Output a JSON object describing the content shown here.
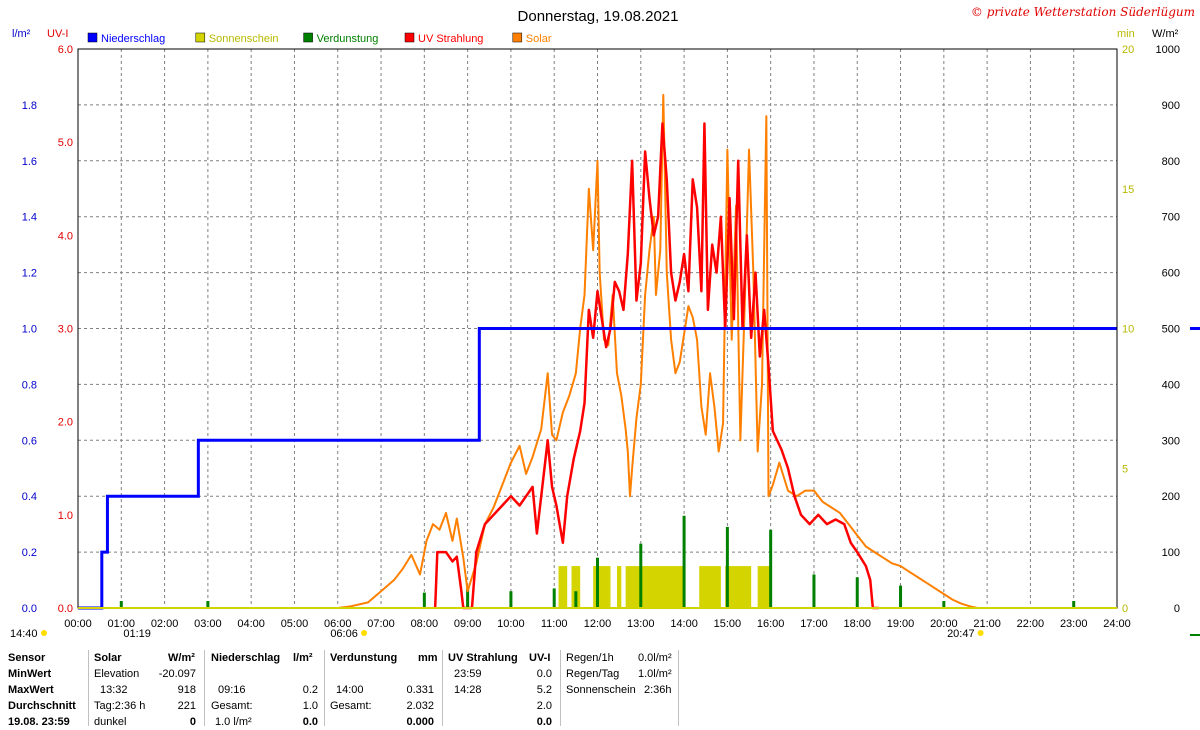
{
  "chart_data": {
    "type": "line",
    "title": "Donnerstag, 19.08.2021",
    "copyright": "© private Wetterstation Süderlügum",
    "x_ticks": [
      "00:00",
      "01:00",
      "02:00",
      "03:00",
      "04:00",
      "05:00",
      "06:00",
      "07:00",
      "08:00",
      "09:00",
      "10:00",
      "11:00",
      "12:00",
      "13:00",
      "14:00",
      "15:00",
      "16:00",
      "17:00",
      "18:00",
      "19:00",
      "20:00",
      "21:00",
      "22:00",
      "23:00",
      "24:00"
    ],
    "xlim_hours": [
      0,
      24
    ],
    "axes": {
      "precip": {
        "label": "l/m²",
        "ylim": [
          0,
          2.0
        ],
        "ticks": [
          "0.0",
          "0.2",
          "0.4",
          "0.6",
          "0.8",
          "1.0",
          "1.2",
          "1.4",
          "1.6",
          "1.8"
        ],
        "color": "#0000cc"
      },
      "uv": {
        "label": "UV-I",
        "ylim": [
          0,
          6.0
        ],
        "ticks": [
          "0.0",
          "1.0",
          "2.0",
          "3.0",
          "4.0",
          "5.0",
          "6.0"
        ],
        "color": "#e00000"
      },
      "sunshine": {
        "label": "min",
        "ylim": [
          0,
          20
        ],
        "ticks": [
          "0",
          "5",
          "10",
          "15",
          "20"
        ],
        "color": "#b8b800"
      },
      "solar": {
        "label": "W/m²",
        "ylim": [
          0,
          1000
        ],
        "ticks": [
          "0",
          "100",
          "200",
          "300",
          "400",
          "500",
          "600",
          "700",
          "800",
          "900",
          "1000"
        ],
        "color": "#000000"
      }
    },
    "legend": [
      {
        "name": "Niederschlag",
        "color": "#0000ff"
      },
      {
        "name": "Sonnenschein",
        "color": "#d4d400"
      },
      {
        "name": "Verdunstung",
        "color": "#008000"
      },
      {
        "name": "UV Strahlung",
        "color": "#ff0000"
      },
      {
        "name": "Solar",
        "color": "#ff8000"
      }
    ],
    "series": [
      {
        "name": "Niederschlag",
        "axis": "precip",
        "color": "#0000ff",
        "step": true,
        "points": [
          [
            0,
            0
          ],
          [
            0.55,
            0
          ],
          [
            0.55,
            0.2
          ],
          [
            0.68,
            0.2
          ],
          [
            0.68,
            0.4
          ],
          [
            2.78,
            0.4
          ],
          [
            2.78,
            0.6
          ],
          [
            9.27,
            0.6
          ],
          [
            9.27,
            1.0
          ],
          [
            24,
            1.0
          ]
        ]
      },
      {
        "name": "Solar",
        "axis": "solar",
        "color": "#ff8000",
        "points": [
          [
            6.0,
            0
          ],
          [
            6.3,
            3
          ],
          [
            6.7,
            10
          ],
          [
            7.0,
            30
          ],
          [
            7.3,
            50
          ],
          [
            7.5,
            70
          ],
          [
            7.7,
            95
          ],
          [
            7.9,
            60
          ],
          [
            8.05,
            120
          ],
          [
            8.2,
            150
          ],
          [
            8.35,
            140
          ],
          [
            8.5,
            170
          ],
          [
            8.65,
            120
          ],
          [
            8.75,
            160
          ],
          [
            8.9,
            90
          ],
          [
            9.0,
            30
          ],
          [
            9.2,
            80
          ],
          [
            9.4,
            150
          ],
          [
            9.6,
            180
          ],
          [
            9.8,
            220
          ],
          [
            9.9,
            240
          ],
          [
            10.0,
            260
          ],
          [
            10.2,
            290
          ],
          [
            10.35,
            240
          ],
          [
            10.5,
            270
          ],
          [
            10.7,
            320
          ],
          [
            10.85,
            420
          ],
          [
            10.95,
            310
          ],
          [
            11.05,
            300
          ],
          [
            11.2,
            350
          ],
          [
            11.35,
            380
          ],
          [
            11.5,
            420
          ],
          [
            11.6,
            500
          ],
          [
            11.7,
            560
          ],
          [
            11.8,
            750
          ],
          [
            11.9,
            640
          ],
          [
            12.0,
            800
          ],
          [
            12.05,
            600
          ],
          [
            12.15,
            480
          ],
          [
            12.25,
            470
          ],
          [
            12.35,
            560
          ],
          [
            12.45,
            420
          ],
          [
            12.55,
            380
          ],
          [
            12.65,
            320
          ],
          [
            12.7,
            280
          ],
          [
            12.75,
            200
          ],
          [
            12.8,
            250
          ],
          [
            12.9,
            340
          ],
          [
            13.0,
            400
          ],
          [
            13.1,
            560
          ],
          [
            13.2,
            640
          ],
          [
            13.3,
            700
          ],
          [
            13.35,
            560
          ],
          [
            13.45,
            640
          ],
          [
            13.52,
            918
          ],
          [
            13.6,
            600
          ],
          [
            13.7,
            480
          ],
          [
            13.8,
            420
          ],
          [
            13.9,
            440
          ],
          [
            14.0,
            490
          ],
          [
            14.1,
            540
          ],
          [
            14.2,
            520
          ],
          [
            14.3,
            480
          ],
          [
            14.4,
            360
          ],
          [
            14.5,
            310
          ],
          [
            14.6,
            420
          ],
          [
            14.7,
            360
          ],
          [
            14.8,
            280
          ],
          [
            14.9,
            330
          ],
          [
            15.0,
            820
          ],
          [
            15.1,
            480
          ],
          [
            15.2,
            720
          ],
          [
            15.3,
            300
          ],
          [
            15.4,
            540
          ],
          [
            15.5,
            820
          ],
          [
            15.6,
            600
          ],
          [
            15.7,
            280
          ],
          [
            15.8,
            400
          ],
          [
            15.9,
            880
          ],
          [
            15.95,
            200
          ],
          [
            16.05,
            220
          ],
          [
            16.2,
            260
          ],
          [
            16.4,
            210
          ],
          [
            16.6,
            200
          ],
          [
            16.8,
            210
          ],
          [
            17.0,
            210
          ],
          [
            17.2,
            190
          ],
          [
            17.4,
            180
          ],
          [
            17.6,
            170
          ],
          [
            17.8,
            150
          ],
          [
            18.0,
            130
          ],
          [
            18.2,
            110
          ],
          [
            18.4,
            100
          ],
          [
            18.6,
            90
          ],
          [
            18.8,
            80
          ],
          [
            19.0,
            75
          ],
          [
            19.2,
            65
          ],
          [
            19.4,
            55
          ],
          [
            19.6,
            45
          ],
          [
            19.8,
            35
          ],
          [
            20.0,
            25
          ],
          [
            20.2,
            15
          ],
          [
            20.4,
            8
          ],
          [
            20.6,
            3
          ],
          [
            20.78,
            0
          ]
        ]
      },
      {
        "name": "UV Strahlung",
        "axis": "uv",
        "color": "#ff0000",
        "points": [
          [
            8.25,
            0
          ],
          [
            8.3,
            0.6
          ],
          [
            8.5,
            0.6
          ],
          [
            8.65,
            0.5
          ],
          [
            8.75,
            0.55
          ],
          [
            8.85,
            0.2
          ],
          [
            8.9,
            0
          ],
          [
            9.1,
            0
          ],
          [
            9.2,
            0.6
          ],
          [
            9.4,
            0.9
          ],
          [
            9.6,
            1.0
          ],
          [
            9.8,
            1.1
          ],
          [
            10.0,
            1.2
          ],
          [
            10.2,
            1.1
          ],
          [
            10.35,
            1.2
          ],
          [
            10.5,
            1.3
          ],
          [
            10.6,
            0.8
          ],
          [
            10.7,
            1.2
          ],
          [
            10.85,
            1.8
          ],
          [
            10.95,
            1.3
          ],
          [
            11.05,
            1.1
          ],
          [
            11.2,
            0.7
          ],
          [
            11.3,
            1.2
          ],
          [
            11.45,
            1.6
          ],
          [
            11.6,
            1.9
          ],
          [
            11.7,
            2.2
          ],
          [
            11.8,
            3.2
          ],
          [
            11.9,
            2.9
          ],
          [
            12.0,
            3.4
          ],
          [
            12.1,
            3.1
          ],
          [
            12.2,
            2.8
          ],
          [
            12.3,
            3.0
          ],
          [
            12.4,
            3.5
          ],
          [
            12.5,
            3.4
          ],
          [
            12.6,
            3.2
          ],
          [
            12.7,
            3.8
          ],
          [
            12.8,
            4.8
          ],
          [
            12.9,
            3.3
          ],
          [
            13.0,
            3.7
          ],
          [
            13.1,
            4.9
          ],
          [
            13.2,
            4.4
          ],
          [
            13.3,
            4.0
          ],
          [
            13.4,
            4.2
          ],
          [
            13.5,
            5.2
          ],
          [
            13.6,
            4.6
          ],
          [
            13.7,
            3.6
          ],
          [
            13.8,
            3.3
          ],
          [
            13.9,
            3.5
          ],
          [
            14.0,
            3.8
          ],
          [
            14.1,
            3.4
          ],
          [
            14.2,
            4.6
          ],
          [
            14.3,
            4.3
          ],
          [
            14.4,
            3.4
          ],
          [
            14.47,
            5.2
          ],
          [
            14.55,
            3.2
          ],
          [
            14.65,
            3.9
          ],
          [
            14.75,
            3.6
          ],
          [
            14.85,
            4.2
          ],
          [
            14.95,
            3.0
          ],
          [
            15.05,
            4.4
          ],
          [
            15.15,
            3.1
          ],
          [
            15.25,
            4.8
          ],
          [
            15.35,
            3.0
          ],
          [
            15.45,
            4.0
          ],
          [
            15.55,
            2.9
          ],
          [
            15.65,
            3.6
          ],
          [
            15.75,
            2.7
          ],
          [
            15.85,
            3.2
          ],
          [
            15.95,
            2.6
          ],
          [
            16.05,
            1.9
          ],
          [
            16.25,
            1.7
          ],
          [
            16.4,
            1.5
          ],
          [
            16.55,
            1.2
          ],
          [
            16.7,
            1.0
          ],
          [
            16.9,
            0.9
          ],
          [
            17.1,
            1.0
          ],
          [
            17.3,
            0.9
          ],
          [
            17.5,
            0.95
          ],
          [
            17.7,
            0.9
          ],
          [
            17.85,
            0.7
          ],
          [
            18.0,
            0.6
          ],
          [
            18.2,
            0.45
          ],
          [
            18.3,
            0.3
          ],
          [
            18.36,
            0
          ],
          [
            18.5,
            0
          ]
        ]
      },
      {
        "name": "Verdunstung",
        "axis": "sunshine",
        "color": "#008000",
        "bars": true,
        "points": [
          [
            1.0,
            0.25
          ],
          [
            3.0,
            0.25
          ],
          [
            8.0,
            0.55
          ],
          [
            9.0,
            0.7
          ],
          [
            10.0,
            0.6
          ],
          [
            11.0,
            0.7
          ],
          [
            11.5,
            0.6
          ],
          [
            12.0,
            1.8
          ],
          [
            13.0,
            2.3
          ],
          [
            14.0,
            3.3
          ],
          [
            15.0,
            2.9
          ],
          [
            16.0,
            2.8
          ],
          [
            17.0,
            1.2
          ],
          [
            18.0,
            1.1
          ],
          [
            19.0,
            0.8
          ],
          [
            20.0,
            0.25
          ],
          [
            23.0,
            0.25
          ]
        ]
      },
      {
        "name": "Sonnenschein",
        "axis": "sunshine",
        "color": "#d4d400",
        "bars": true,
        "intervals": [
          [
            11.1,
            11.3,
            1.0
          ],
          [
            11.4,
            11.6,
            1.0
          ],
          [
            11.9,
            12.3,
            1.0
          ],
          [
            12.45,
            12.55,
            1.0
          ],
          [
            12.65,
            14.0,
            1.0
          ],
          [
            14.35,
            14.85,
            1.0
          ],
          [
            14.95,
            15.55,
            1.0
          ],
          [
            15.7,
            16.0,
            1.0
          ]
        ]
      }
    ],
    "x_markers": [
      {
        "label": "14:40",
        "hour": 0
      },
      {
        "label": "01:19",
        "hour": 1.32
      },
      {
        "label": "06:06",
        "hour": 6.1
      },
      {
        "label": "20:47",
        "hour": 20.78
      }
    ],
    "right_legend_levels": {
      "precip_right": 1.0,
      "solar_right": 0.0
    }
  },
  "stats": {
    "rows": [
      "Sensor",
      "MinWert",
      "MaxWert",
      "Durchschnitt",
      "19.08. 23:59"
    ],
    "solar": {
      "header": "Solar",
      "unit": "W/m²",
      "min_label": "Elevation",
      "min_value": "-20.097",
      "max_time": "13:32",
      "max_value": "918",
      "avg_label": "Tag:2:36 h",
      "avg_value": "221",
      "now_label": "dunkel",
      "now_value": "0"
    },
    "precip": {
      "header": "Niederschlag",
      "unit": "l/m²",
      "max_time": "09:16",
      "max_value": "0.2",
      "avg_label": "Gesamt:",
      "avg_value": "1.0",
      "now_label": "1.0 l/m²",
      "now_value": "0.0"
    },
    "evap": {
      "header": "Verdunstung",
      "unit": "mm",
      "max_time": "14:00",
      "max_value": "0.331",
      "avg_label": "Gesamt:",
      "avg_value": "2.032",
      "now_value": "0.000"
    },
    "uv": {
      "header": "UV Strahlung",
      "unit": "UV-I",
      "min_time": "23:59",
      "min_value": "0.0",
      "max_time": "14:28",
      "max_value": "5.2",
      "avg_value": "2.0",
      "now_value": "0.0"
    },
    "rain": {
      "l1": "Regen/1h",
      "v1": "0.0l/m²",
      "l2": "Regen/Tag",
      "v2": "1.0l/m²",
      "l3": "Sonnenschein",
      "v3": "2:36h"
    }
  }
}
